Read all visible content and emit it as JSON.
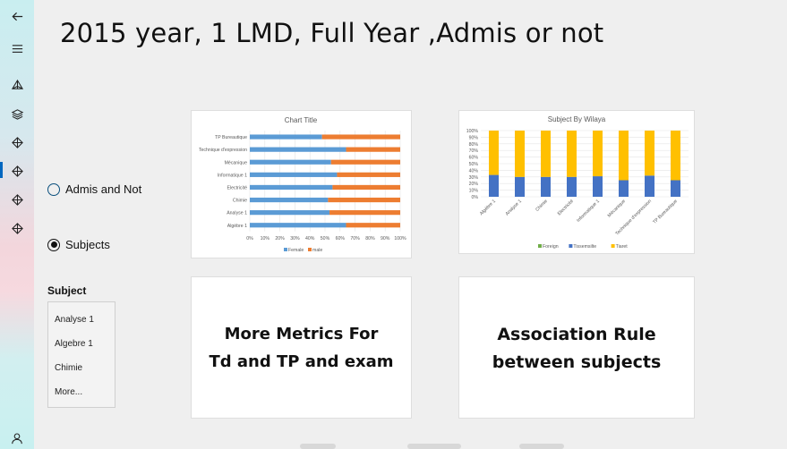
{
  "page": {
    "title": "2015 year, 1 LMD, Full Year ,Admis or not"
  },
  "nav": {
    "items": [
      {
        "name": "back-arrow-icon"
      },
      {
        "name": "hamburger-menu-icon"
      },
      {
        "name": "pyramid-icon"
      },
      {
        "name": "layers-icon"
      },
      {
        "name": "diamond-icon"
      },
      {
        "name": "diamond-icon",
        "selected": true
      },
      {
        "name": "diamond-icon"
      },
      {
        "name": "diamond-icon"
      }
    ],
    "accent": "#0067c0"
  },
  "filters": {
    "option_admis": "Admis and Not",
    "option_subjects": "Subjects",
    "selected": "Subjects"
  },
  "subject_filter": {
    "heading": "Subject",
    "items": [
      "Analyse 1",
      "Algebre 1",
      "Chimie"
    ],
    "more": "More..."
  },
  "cards": {
    "metrics": {
      "line1": "More Metrics For",
      "line2": "Td and TP and exam"
    },
    "association": {
      "line1": "Association Rule",
      "line2": "between subjects"
    }
  },
  "chart_data": [
    {
      "type": "bar",
      "orientation": "horizontal",
      "stacked": "percent",
      "title": "Chart Title",
      "categories": [
        "TP Bureautique",
        "Technique d'expression",
        "Mécanique",
        "Informatique 1",
        "Electricité",
        "Chimie",
        "Analyse 1",
        "Algèbre 1"
      ],
      "series": [
        {
          "name": "Female",
          "color": "#5b9bd5",
          "values": [
            48,
            64,
            54,
            58,
            55,
            52,
            53,
            64
          ]
        },
        {
          "name": "male",
          "color": "#ed7d31",
          "values": [
            52,
            36,
            46,
            42,
            45,
            48,
            47,
            36
          ]
        }
      ],
      "xticks": [
        "0%",
        "10%",
        "20%",
        "30%",
        "40%",
        "50%",
        "60%",
        "70%",
        "80%",
        "90%",
        "100%"
      ],
      "xlim": [
        0,
        100
      ],
      "grid": true,
      "legend": "bottom"
    },
    {
      "type": "bar",
      "orientation": "vertical",
      "stacked": "percent",
      "title": "Subject By Wilaya",
      "categories": [
        "Algèbre 1",
        "Analyse 1",
        "Chimie",
        "Electricité",
        "Informatique 1",
        "Mécanique",
        "Technique d'expression",
        "TP Bureautique"
      ],
      "series": [
        {
          "name": "Foreign",
          "color": "#70ad47",
          "values": [
            0,
            0,
            0,
            0,
            0,
            0,
            0,
            0
          ]
        },
        {
          "name": "Tissemsilte",
          "color": "#4472c4",
          "values": [
            33,
            30,
            30,
            30,
            31,
            25,
            32,
            25
          ]
        },
        {
          "name": "Tiaret",
          "color": "#ffc000",
          "values": [
            67,
            70,
            70,
            70,
            69,
            75,
            68,
            75
          ]
        }
      ],
      "yticks": [
        "0%",
        "10%",
        "20%",
        "30%",
        "40%",
        "50%",
        "60%",
        "70%",
        "80%",
        "90%",
        "100%"
      ],
      "ylim": [
        0,
        100
      ],
      "grid": true,
      "legend": "bottom"
    }
  ]
}
